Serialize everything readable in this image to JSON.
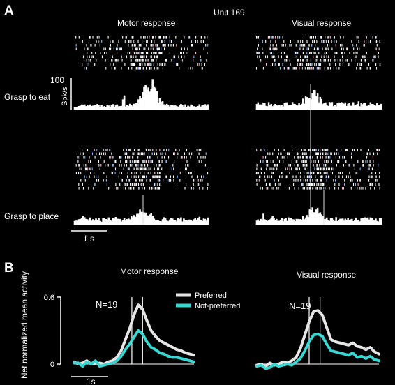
{
  "panel_a": {
    "label": "A",
    "unit_title": "Unit 169",
    "col_titles": [
      "Motor response",
      "Visual response"
    ],
    "row_labels": [
      "Grasp to eat",
      "Grasp to place"
    ],
    "y_scale_value": "100",
    "y_scale_unit": "Spk/s",
    "time_bar_label": "1 s"
  },
  "panel_b": {
    "label": "B",
    "ylabel": "Net normalized mean activity",
    "n_label": "N=19",
    "time_bar_label": "1s",
    "colors": {
      "preferred": "#e6e6e6",
      "not_preferred": "#3ad6d2"
    }
  },
  "chart_data": [
    {
      "type": "line",
      "title": "Motor response",
      "xlabel": "",
      "ylabel": "Net normalized mean activity",
      "ylim": [
        0,
        0.6
      ],
      "yticks": [
        0,
        0.6
      ],
      "x": [
        -1.5,
        -1.4,
        -1.3,
        -1.2,
        -1.1,
        -1.0,
        -0.9,
        -0.8,
        -0.7,
        -0.6,
        -0.5,
        -0.4,
        -0.3,
        -0.2,
        -0.1,
        0.0,
        0.1,
        0.2,
        0.3,
        0.4,
        0.5,
        0.6,
        0.7,
        0.8,
        0.9,
        1.0,
        1.1,
        1.2,
        1.3
      ],
      "series": [
        {
          "name": "Preferred",
          "values": [
            0.02,
            0.0,
            0.01,
            0.03,
            0.0,
            0.0,
            0.01,
            0.0,
            0.02,
            0.03,
            0.06,
            0.12,
            0.22,
            0.32,
            0.44,
            0.53,
            0.49,
            0.39,
            0.3,
            0.25,
            0.21,
            0.19,
            0.17,
            0.15,
            0.13,
            0.12,
            0.1,
            0.09,
            0.08
          ]
        },
        {
          "name": "Not-preferred",
          "values": [
            0.01,
            0.01,
            -0.02,
            0.02,
            0.0,
            0.03,
            -0.02,
            -0.01,
            0.0,
            0.01,
            0.03,
            0.07,
            0.13,
            0.18,
            0.24,
            0.3,
            0.27,
            0.2,
            0.15,
            0.13,
            0.1,
            0.09,
            0.07,
            0.06,
            0.06,
            0.05,
            0.04,
            0.03,
            0.02
          ]
        }
      ],
      "legend": "top-right",
      "vertical_markers_x": [
        -0.15,
        0.1
      ]
    },
    {
      "type": "line",
      "title": "Visual response",
      "xlabel": "",
      "ylabel": "Net normalized mean activity",
      "ylim": [
        0,
        0.6
      ],
      "yticks": [
        0,
        0.6
      ],
      "x": [
        -1.5,
        -1.4,
        -1.3,
        -1.2,
        -1.1,
        -1.0,
        -0.9,
        -0.8,
        -0.7,
        -0.6,
        -0.5,
        -0.4,
        -0.3,
        -0.2,
        -0.1,
        0.0,
        0.1,
        0.2,
        0.3,
        0.4,
        0.5,
        0.6,
        0.7,
        0.8,
        0.9,
        1.0,
        1.1,
        1.2,
        1.3
      ],
      "series": [
        {
          "name": "Preferred",
          "values": [
            -0.01,
            0.0,
            -0.02,
            0.01,
            -0.01,
            0.0,
            0.02,
            0.01,
            0.03,
            0.06,
            0.14,
            0.26,
            0.38,
            0.47,
            0.48,
            0.44,
            0.33,
            0.22,
            0.2,
            0.19,
            0.18,
            0.17,
            0.19,
            0.16,
            0.15,
            0.13,
            0.15,
            0.11,
            0.09
          ]
        },
        {
          "name": "Not-preferred",
          "values": [
            -0.02,
            -0.01,
            -0.04,
            -0.03,
            0.0,
            -0.02,
            -0.01,
            0.0,
            -0.01,
            0.02,
            0.05,
            0.12,
            0.2,
            0.26,
            0.27,
            0.25,
            0.18,
            0.12,
            0.11,
            0.1,
            0.09,
            0.08,
            0.1,
            0.06,
            0.07,
            0.05,
            0.07,
            0.04,
            0.03
          ]
        }
      ],
      "vertical_markers_x": [
        -0.3,
        -0.05
      ]
    }
  ]
}
